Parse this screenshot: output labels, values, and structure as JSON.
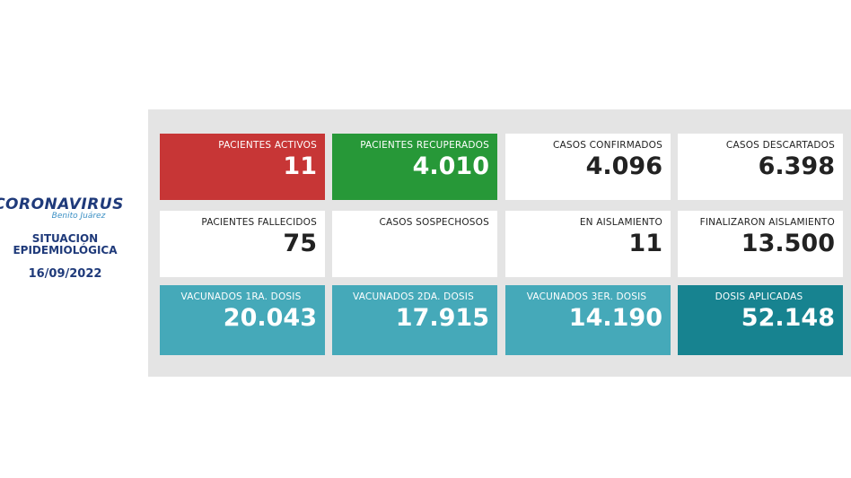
{
  "header": {
    "logo_title": "CORONAVIRUS",
    "logo_subtitle": "Benito Juárez",
    "situation_line1": "SITUACION",
    "situation_line2": "EPIDEMIOLÓGICA",
    "date": "16/09/2022"
  },
  "cards": [
    {
      "label": "PACIENTES ACTIVOS",
      "value": "11"
    },
    {
      "label": "PACIENTES RECUPERADOS",
      "value": "4.010"
    },
    {
      "label": "CASOS CONFIRMADOS",
      "value": "4.096"
    },
    {
      "label": "CASOS DESCARTADOS",
      "value": "6.398"
    },
    {
      "label": "PACIENTES FALLECIDOS",
      "value": "75"
    },
    {
      "label": "CASOS SOSPECHOSOS",
      "value": ""
    },
    {
      "label": "EN AISLAMIENTO",
      "value": "11"
    },
    {
      "label": "FINALIZARON AISLAMIENTO",
      "value": "13.500"
    },
    {
      "label": "VACUNADOS 1RA. DOSIS",
      "value": "20.043"
    },
    {
      "label": "VACUNADOS 2DA. DOSIS",
      "value": "17.915"
    },
    {
      "label": "VACUNADOS 3ER. DOSIS",
      "value": "14.190"
    },
    {
      "label": "DOSIS APLICADAS",
      "value": "52.148"
    }
  ],
  "colors": {
    "red": "#c73636",
    "green": "#279838",
    "white": "#ffffff",
    "teal": "#45a9b9",
    "teal_dark": "#178390",
    "brand_blue": "#1f3a7a"
  }
}
